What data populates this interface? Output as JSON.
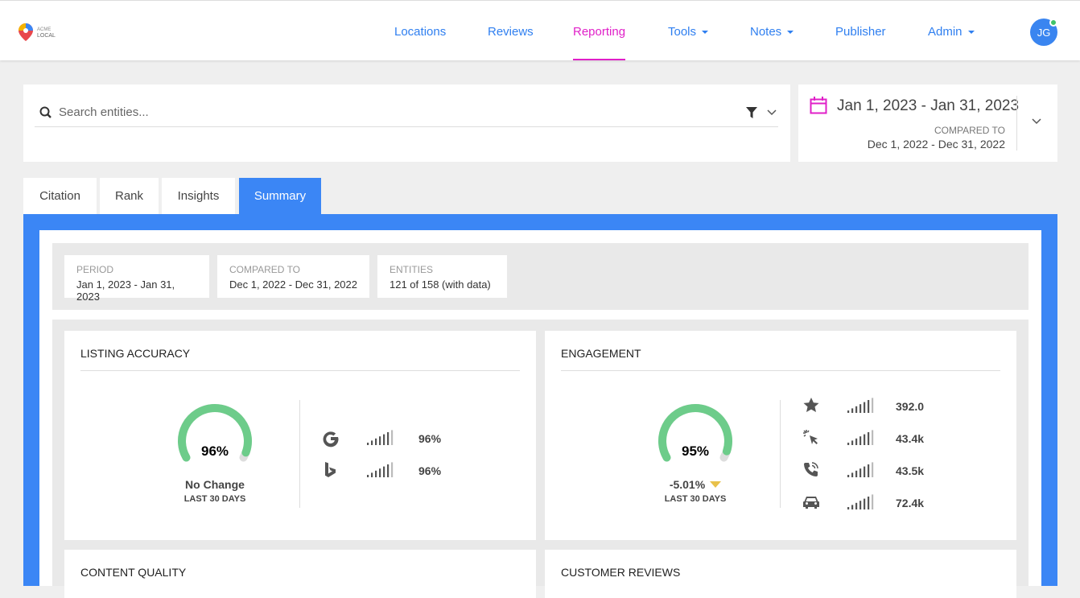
{
  "nav": {
    "logo": {
      "line1": "ACME",
      "line2": "LOCAL"
    },
    "items": [
      {
        "label": "Locations",
        "dropdown": false
      },
      {
        "label": "Reviews",
        "dropdown": false
      },
      {
        "label": "Reporting",
        "dropdown": false
      },
      {
        "label": "Tools",
        "dropdown": true
      },
      {
        "label": "Notes",
        "dropdown": true
      },
      {
        "label": "Publisher",
        "dropdown": false
      },
      {
        "label": "Admin",
        "dropdown": true
      }
    ],
    "active_index": 2,
    "avatar": "JG"
  },
  "search": {
    "placeholder": "Search entities..."
  },
  "date_range": {
    "range": "Jan 1, 2023 - Jan 31, 2023",
    "compared_label": "COMPARED TO",
    "compared": "Dec 1, 2022 - Dec 31, 2022"
  },
  "tabs": {
    "items": [
      "Citation",
      "Rank",
      "Insights",
      "Summary"
    ],
    "active_index": 3
  },
  "summary_info": [
    {
      "label": "PERIOD",
      "value": "Jan 1, 2023 - Jan 31, 2023"
    },
    {
      "label": "COMPARED TO",
      "value": "Dec 1, 2022 - Dec 31, 2022"
    },
    {
      "label": "ENTITIES",
      "value": "121 of 158 (with data)"
    }
  ],
  "cards": [
    {
      "title": "LISTING ACCURACY",
      "gauge": {
        "value": 96,
        "label": "96%"
      },
      "change": "No Change",
      "trend": "none",
      "period": "LAST 30 DAYS",
      "rows": [
        {
          "icon": "google",
          "value": "96%"
        },
        {
          "icon": "bing",
          "value": "96%"
        }
      ]
    },
    {
      "title": "ENGAGEMENT",
      "gauge": {
        "value": 95,
        "label": "95%"
      },
      "change": "-5.01%",
      "trend": "down",
      "period": "LAST 30 DAYS",
      "rows": [
        {
          "icon": "star",
          "value": "392.0"
        },
        {
          "icon": "click",
          "value": "43.4k"
        },
        {
          "icon": "phone",
          "value": "43.5k"
        },
        {
          "icon": "car",
          "value": "72.4k"
        }
      ]
    },
    {
      "title": "CONTENT QUALITY"
    },
    {
      "title": "CUSTOMER REVIEWS"
    }
  ]
}
